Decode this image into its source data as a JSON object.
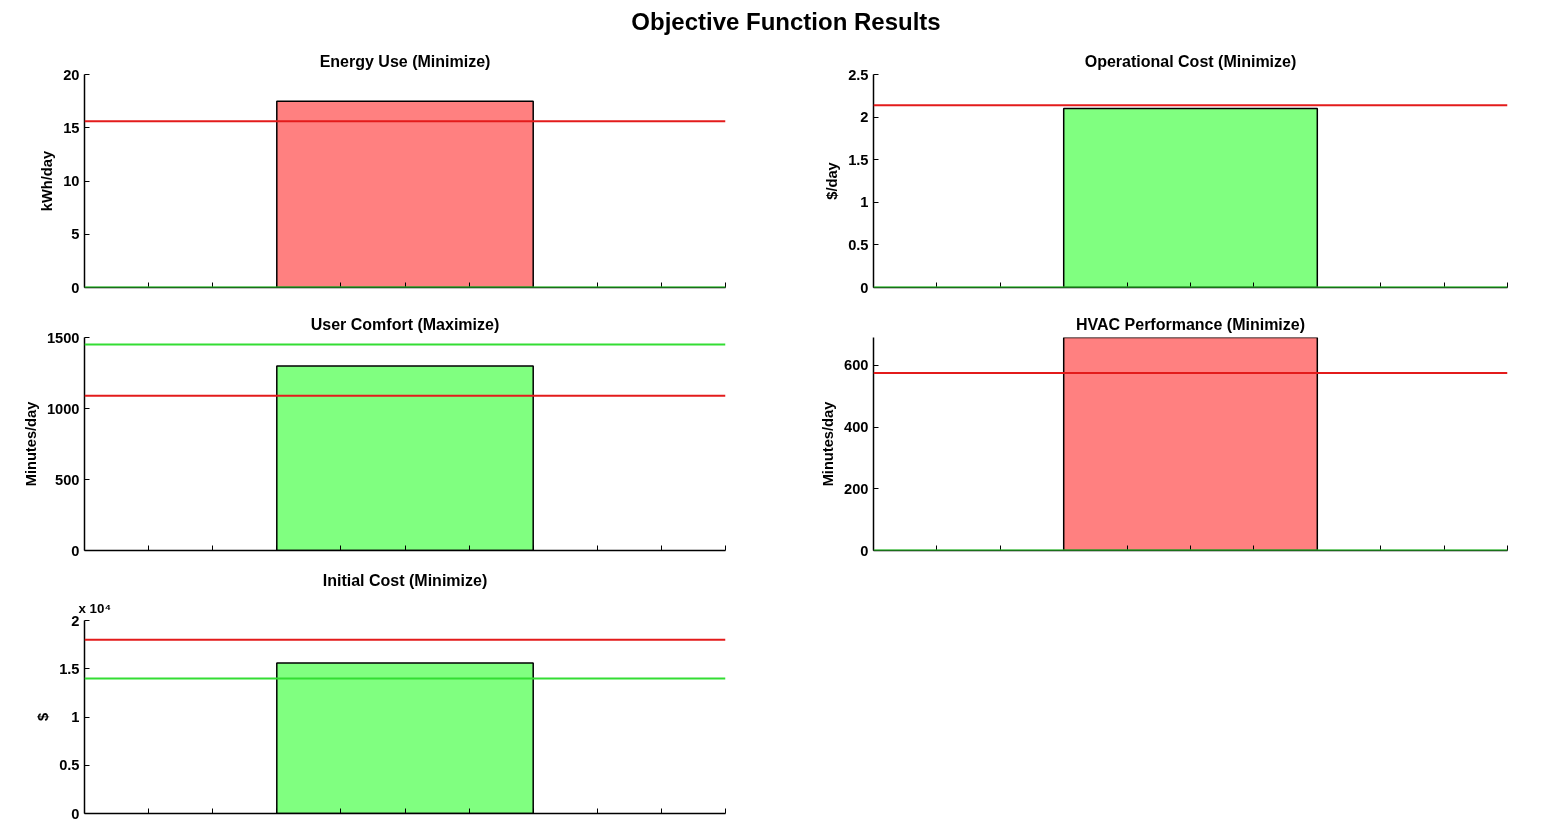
{
  "chart_data": [
    {
      "type": "bar",
      "title": "Energy Use (Minimize)",
      "ylabel": "kWh/day",
      "annotations": [
        "Objective Function Results"
      ],
      "categories": [
        null
      ],
      "values": [
        17.5
      ],
      "color": "#ff8080",
      "ylim": [
        0,
        20
      ],
      "yticks": [
        0,
        5,
        10,
        15,
        20
      ],
      "ref_lines": [
        {
          "axis": "y",
          "value": 15.6,
          "color": "#e31b1b"
        },
        {
          "axis": "y",
          "value": 0,
          "color": "#33dd33"
        }
      ]
    },
    {
      "type": "bar",
      "title": "Operational Cost (Minimize)",
      "ylabel": "$/day",
      "categories": [
        null
      ],
      "values": [
        2.1
      ],
      "color": "#80ff80",
      "ylim": [
        0,
        2.5
      ],
      "yticks": [
        0,
        0.5,
        1,
        1.5,
        2,
        2.5
      ],
      "ref_lines": [
        {
          "axis": "y",
          "value": 2.14,
          "color": "#e31b1b"
        },
        {
          "axis": "y",
          "value": 0,
          "color": "#33dd33"
        }
      ]
    },
    {
      "type": "bar",
      "title": "User Comfort (Maximize)",
      "ylabel": "Minutes/day",
      "categories": [
        null
      ],
      "values": [
        1300
      ],
      "color": "#80ff80",
      "ylim": [
        0,
        1500
      ],
      "yticks": [
        0,
        500,
        1000,
        1500
      ],
      "ref_lines": [
        {
          "axis": "y",
          "value": 1450,
          "color": "#33dd33"
        },
        {
          "axis": "y",
          "value": 1090,
          "color": "#e31b1b"
        }
      ]
    },
    {
      "type": "bar",
      "title": "HVAC Performance (Minimize)",
      "ylabel": "Minutes/day",
      "categories": [
        null
      ],
      "values": [
        690
      ],
      "color": "#ff8080",
      "ylim": [
        0,
        690
      ],
      "yticks": [
        0,
        200,
        400,
        600
      ],
      "ref_lines": [
        {
          "axis": "y",
          "value": 575,
          "color": "#e31b1b"
        },
        {
          "axis": "y",
          "value": 0,
          "color": "#33dd33"
        }
      ]
    },
    {
      "type": "bar",
      "title": "Initial Cost (Minimize)",
      "ylabel": "$",
      "annotations": [
        "x 10⁴"
      ],
      "categories": [
        null
      ],
      "values": [
        1.56
      ],
      "color": "#80ff80",
      "ylim": [
        0,
        2
      ],
      "yticks": [
        0,
        0.5,
        1,
        1.5,
        2
      ],
      "ref_lines": [
        {
          "axis": "y",
          "value": 1.8,
          "color": "#e31b1b"
        },
        {
          "axis": "y",
          "value": 1.4,
          "color": "#33dd33"
        }
      ]
    }
  ]
}
